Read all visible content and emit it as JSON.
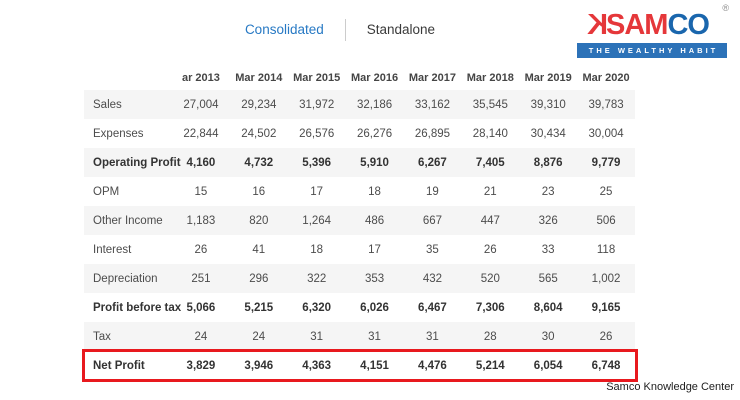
{
  "tabs": {
    "consolidated_label": "Consolidated",
    "standalone_label": "Standalone",
    "active_tab": "Consolidated"
  },
  "logo": {
    "glyph": "samco-bull-glyph",
    "glyph_char": "K",
    "brand_sam": "SAM",
    "brand_co": "CO",
    "registered_mark": "®",
    "tagline": "THE WEALTHY HABIT"
  },
  "table": {
    "columns": [
      "ar 2013",
      "Mar 2014",
      "Mar 2015",
      "Mar 2016",
      "Mar 2017",
      "Mar 2018",
      "Mar 2019",
      "Mar 2020"
    ],
    "rows": [
      {
        "label": "Sales",
        "values": [
          "27,004",
          "29,234",
          "31,972",
          "32,186",
          "33,162",
          "35,545",
          "39,310",
          "39,783"
        ],
        "bold": false,
        "highlighted": false
      },
      {
        "label": "Expenses",
        "values": [
          "22,844",
          "24,502",
          "26,576",
          "26,276",
          "26,895",
          "28,140",
          "30,434",
          "30,004"
        ],
        "bold": false,
        "highlighted": false
      },
      {
        "label": "Operating Profit",
        "values": [
          "4,160",
          "4,732",
          "5,396",
          "5,910",
          "6,267",
          "7,405",
          "8,876",
          "9,779"
        ],
        "bold": true,
        "highlighted": false
      },
      {
        "label": "OPM",
        "values": [
          "15",
          "16",
          "17",
          "18",
          "19",
          "21",
          "23",
          "25"
        ],
        "bold": false,
        "highlighted": false
      },
      {
        "label": "Other Income",
        "values": [
          "1,183",
          "820",
          "1,264",
          "486",
          "667",
          "447",
          "326",
          "506"
        ],
        "bold": false,
        "highlighted": false
      },
      {
        "label": "Interest",
        "values": [
          "26",
          "41",
          "18",
          "17",
          "35",
          "26",
          "33",
          "118"
        ],
        "bold": false,
        "highlighted": false
      },
      {
        "label": "Depreciation",
        "values": [
          "251",
          "296",
          "322",
          "353",
          "432",
          "520",
          "565",
          "1,002"
        ],
        "bold": false,
        "highlighted": false
      },
      {
        "label": "Profit before tax",
        "values": [
          "5,066",
          "5,215",
          "6,320",
          "6,026",
          "6,467",
          "7,306",
          "8,604",
          "9,165"
        ],
        "bold": true,
        "highlighted": false
      },
      {
        "label": "Tax",
        "values": [
          "24",
          "24",
          "31",
          "31",
          "31",
          "28",
          "30",
          "26"
        ],
        "bold": false,
        "highlighted": false
      },
      {
        "label": "Net Profit",
        "values": [
          "3,829",
          "3,946",
          "4,363",
          "4,151",
          "4,476",
          "5,214",
          "6,054",
          "6,748"
        ],
        "bold": true,
        "highlighted": true
      }
    ]
  },
  "footer": {
    "credit": "Samco Knowledge Center"
  },
  "colors": {
    "accent_blue": "#2779c4",
    "highlight_red": "#e8191e",
    "logo_red": "#e5373a",
    "logo_blue": "#1a66ad",
    "tagline_bar_blue": "#2c72b8",
    "stripe_gray": "#f5f5f5"
  }
}
